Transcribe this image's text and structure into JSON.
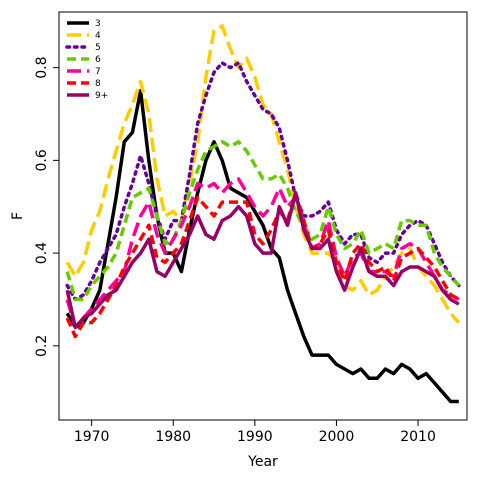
{
  "chart_data": {
    "type": "line",
    "xlabel": "Year",
    "ylabel": "F",
    "xlim": [
      1966,
      2016
    ],
    "ylim": [
      0.04,
      0.92
    ],
    "xticks": [
      1970,
      1980,
      1990,
      2000,
      2010
    ],
    "yticks": [
      0.2,
      0.4,
      0.6,
      0.8
    ],
    "grid": false,
    "legend_position": "top-left",
    "x": [
      1967,
      1968,
      1969,
      1970,
      1971,
      1972,
      1973,
      1974,
      1975,
      1976,
      1977,
      1978,
      1979,
      1980,
      1981,
      1982,
      1983,
      1984,
      1985,
      1986,
      1987,
      1988,
      1989,
      1990,
      1991,
      1992,
      1993,
      1994,
      1995,
      1996,
      1997,
      1998,
      1999,
      2000,
      2001,
      2002,
      2003,
      2004,
      2005,
      2006,
      2007,
      2008,
      2009,
      2010,
      2011,
      2012,
      2013,
      2014,
      2015
    ],
    "series": [
      {
        "name": "3",
        "color": "#000000",
        "dash": "solid",
        "values": [
          0.27,
          0.24,
          0.25,
          0.28,
          0.32,
          0.42,
          0.52,
          0.64,
          0.66,
          0.75,
          0.6,
          0.48,
          0.4,
          0.4,
          0.36,
          0.45,
          0.53,
          0.6,
          0.64,
          0.6,
          0.54,
          0.53,
          0.52,
          0.49,
          0.46,
          0.41,
          0.39,
          0.32,
          0.27,
          0.22,
          0.18,
          0.18,
          0.18,
          0.16,
          0.15,
          0.14,
          0.15,
          0.13,
          0.13,
          0.15,
          0.14,
          0.16,
          0.15,
          0.13,
          0.14,
          0.12,
          0.1,
          0.08,
          0.08
        ]
      },
      {
        "name": "4",
        "color": "#ffcc00",
        "dash": "long",
        "values": [
          0.38,
          0.35,
          0.38,
          0.45,
          0.49,
          0.56,
          0.62,
          0.68,
          0.72,
          0.77,
          0.7,
          0.56,
          0.48,
          0.49,
          0.47,
          0.55,
          0.64,
          0.78,
          0.88,
          0.89,
          0.84,
          0.8,
          0.82,
          0.78,
          0.72,
          0.7,
          0.64,
          0.58,
          0.5,
          0.44,
          0.4,
          0.4,
          0.4,
          0.38,
          0.33,
          0.32,
          0.34,
          0.31,
          0.32,
          0.35,
          0.37,
          0.4,
          0.41,
          0.37,
          0.35,
          0.33,
          0.3,
          0.27,
          0.25
        ]
      },
      {
        "name": "5",
        "color": "#660099",
        "dash": "dot",
        "values": [
          0.33,
          0.3,
          0.31,
          0.34,
          0.38,
          0.41,
          0.44,
          0.5,
          0.55,
          0.61,
          0.55,
          0.48,
          0.43,
          0.47,
          0.47,
          0.57,
          0.68,
          0.74,
          0.79,
          0.81,
          0.8,
          0.81,
          0.77,
          0.74,
          0.71,
          0.7,
          0.67,
          0.6,
          0.52,
          0.48,
          0.48,
          0.49,
          0.51,
          0.45,
          0.42,
          0.44,
          0.44,
          0.39,
          0.38,
          0.4,
          0.4,
          0.44,
          0.46,
          0.47,
          0.46,
          0.42,
          0.38,
          0.35,
          0.33
        ]
      },
      {
        "name": "6",
        "color": "#66cc00",
        "dash": "dash",
        "values": [
          0.36,
          0.3,
          0.3,
          0.33,
          0.35,
          0.37,
          0.4,
          0.46,
          0.52,
          0.53,
          0.54,
          0.48,
          0.42,
          0.43,
          0.47,
          0.53,
          0.58,
          0.62,
          0.63,
          0.64,
          0.63,
          0.64,
          0.62,
          0.59,
          0.56,
          0.56,
          0.57,
          0.54,
          0.49,
          0.46,
          0.43,
          0.44,
          0.5,
          0.44,
          0.41,
          0.42,
          0.45,
          0.4,
          0.41,
          0.42,
          0.41,
          0.47,
          0.47,
          0.46,
          0.46,
          0.4,
          0.37,
          0.35,
          0.33
        ]
      },
      {
        "name": "7",
        "color": "#ff0099",
        "dash": "long",
        "values": [
          0.3,
          0.24,
          0.26,
          0.28,
          0.3,
          0.32,
          0.34,
          0.36,
          0.43,
          0.48,
          0.51,
          0.44,
          0.4,
          0.43,
          0.46,
          0.5,
          0.55,
          0.54,
          0.55,
          0.53,
          0.55,
          0.56,
          0.53,
          0.5,
          0.48,
          0.5,
          0.54,
          0.5,
          0.52,
          0.46,
          0.41,
          0.42,
          0.47,
          0.39,
          0.35,
          0.39,
          0.4,
          0.36,
          0.36,
          0.36,
          0.35,
          0.41,
          0.42,
          0.41,
          0.38,
          0.35,
          0.32,
          0.31,
          0.3
        ]
      },
      {
        "name": "8",
        "color": "#ff0000",
        "dash": "dash",
        "values": [
          0.26,
          0.22,
          0.25,
          0.25,
          0.27,
          0.3,
          0.33,
          0.37,
          0.4,
          0.43,
          0.46,
          0.39,
          0.38,
          0.4,
          0.42,
          0.47,
          0.52,
          0.5,
          0.48,
          0.51,
          0.51,
          0.51,
          0.51,
          0.44,
          0.42,
          0.45,
          0.49,
          0.47,
          0.53,
          0.47,
          0.41,
          0.42,
          0.45,
          0.38,
          0.34,
          0.4,
          0.42,
          0.38,
          0.36,
          0.37,
          0.34,
          0.39,
          0.4,
          0.41,
          0.39,
          0.37,
          0.34,
          0.31,
          0.3
        ]
      },
      {
        "name": "9+",
        "color": "#990066",
        "dash": "solid",
        "values": [
          0.32,
          0.24,
          0.26,
          0.27,
          0.29,
          0.31,
          0.32,
          0.35,
          0.38,
          0.4,
          0.43,
          0.36,
          0.35,
          0.38,
          0.41,
          0.44,
          0.48,
          0.44,
          0.43,
          0.47,
          0.48,
          0.5,
          0.48,
          0.42,
          0.4,
          0.4,
          0.5,
          0.46,
          0.53,
          0.45,
          0.41,
          0.41,
          0.43,
          0.36,
          0.32,
          0.37,
          0.41,
          0.36,
          0.35,
          0.35,
          0.33,
          0.36,
          0.37,
          0.37,
          0.36,
          0.35,
          0.32,
          0.3,
          0.29
        ]
      }
    ]
  }
}
